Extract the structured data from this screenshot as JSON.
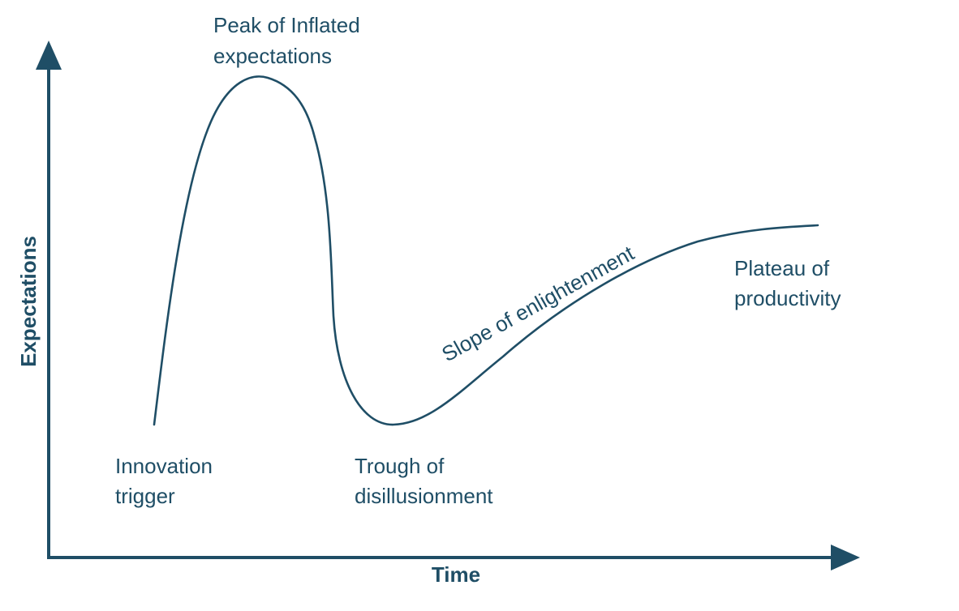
{
  "axes": {
    "y_label": "Expectations",
    "x_label": "Time"
  },
  "phases": {
    "innovation_trigger": {
      "line1": "Innovation",
      "line2": "trigger"
    },
    "peak": {
      "line1": "Peak of Inflated",
      "line2": "expectations"
    },
    "trough": {
      "line1": "Trough of",
      "line2": "disillusionment"
    },
    "slope": {
      "text": "Slope of enlightenment"
    },
    "plateau": {
      "line1": "Plateau of",
      "line2": "productivity"
    }
  }
}
